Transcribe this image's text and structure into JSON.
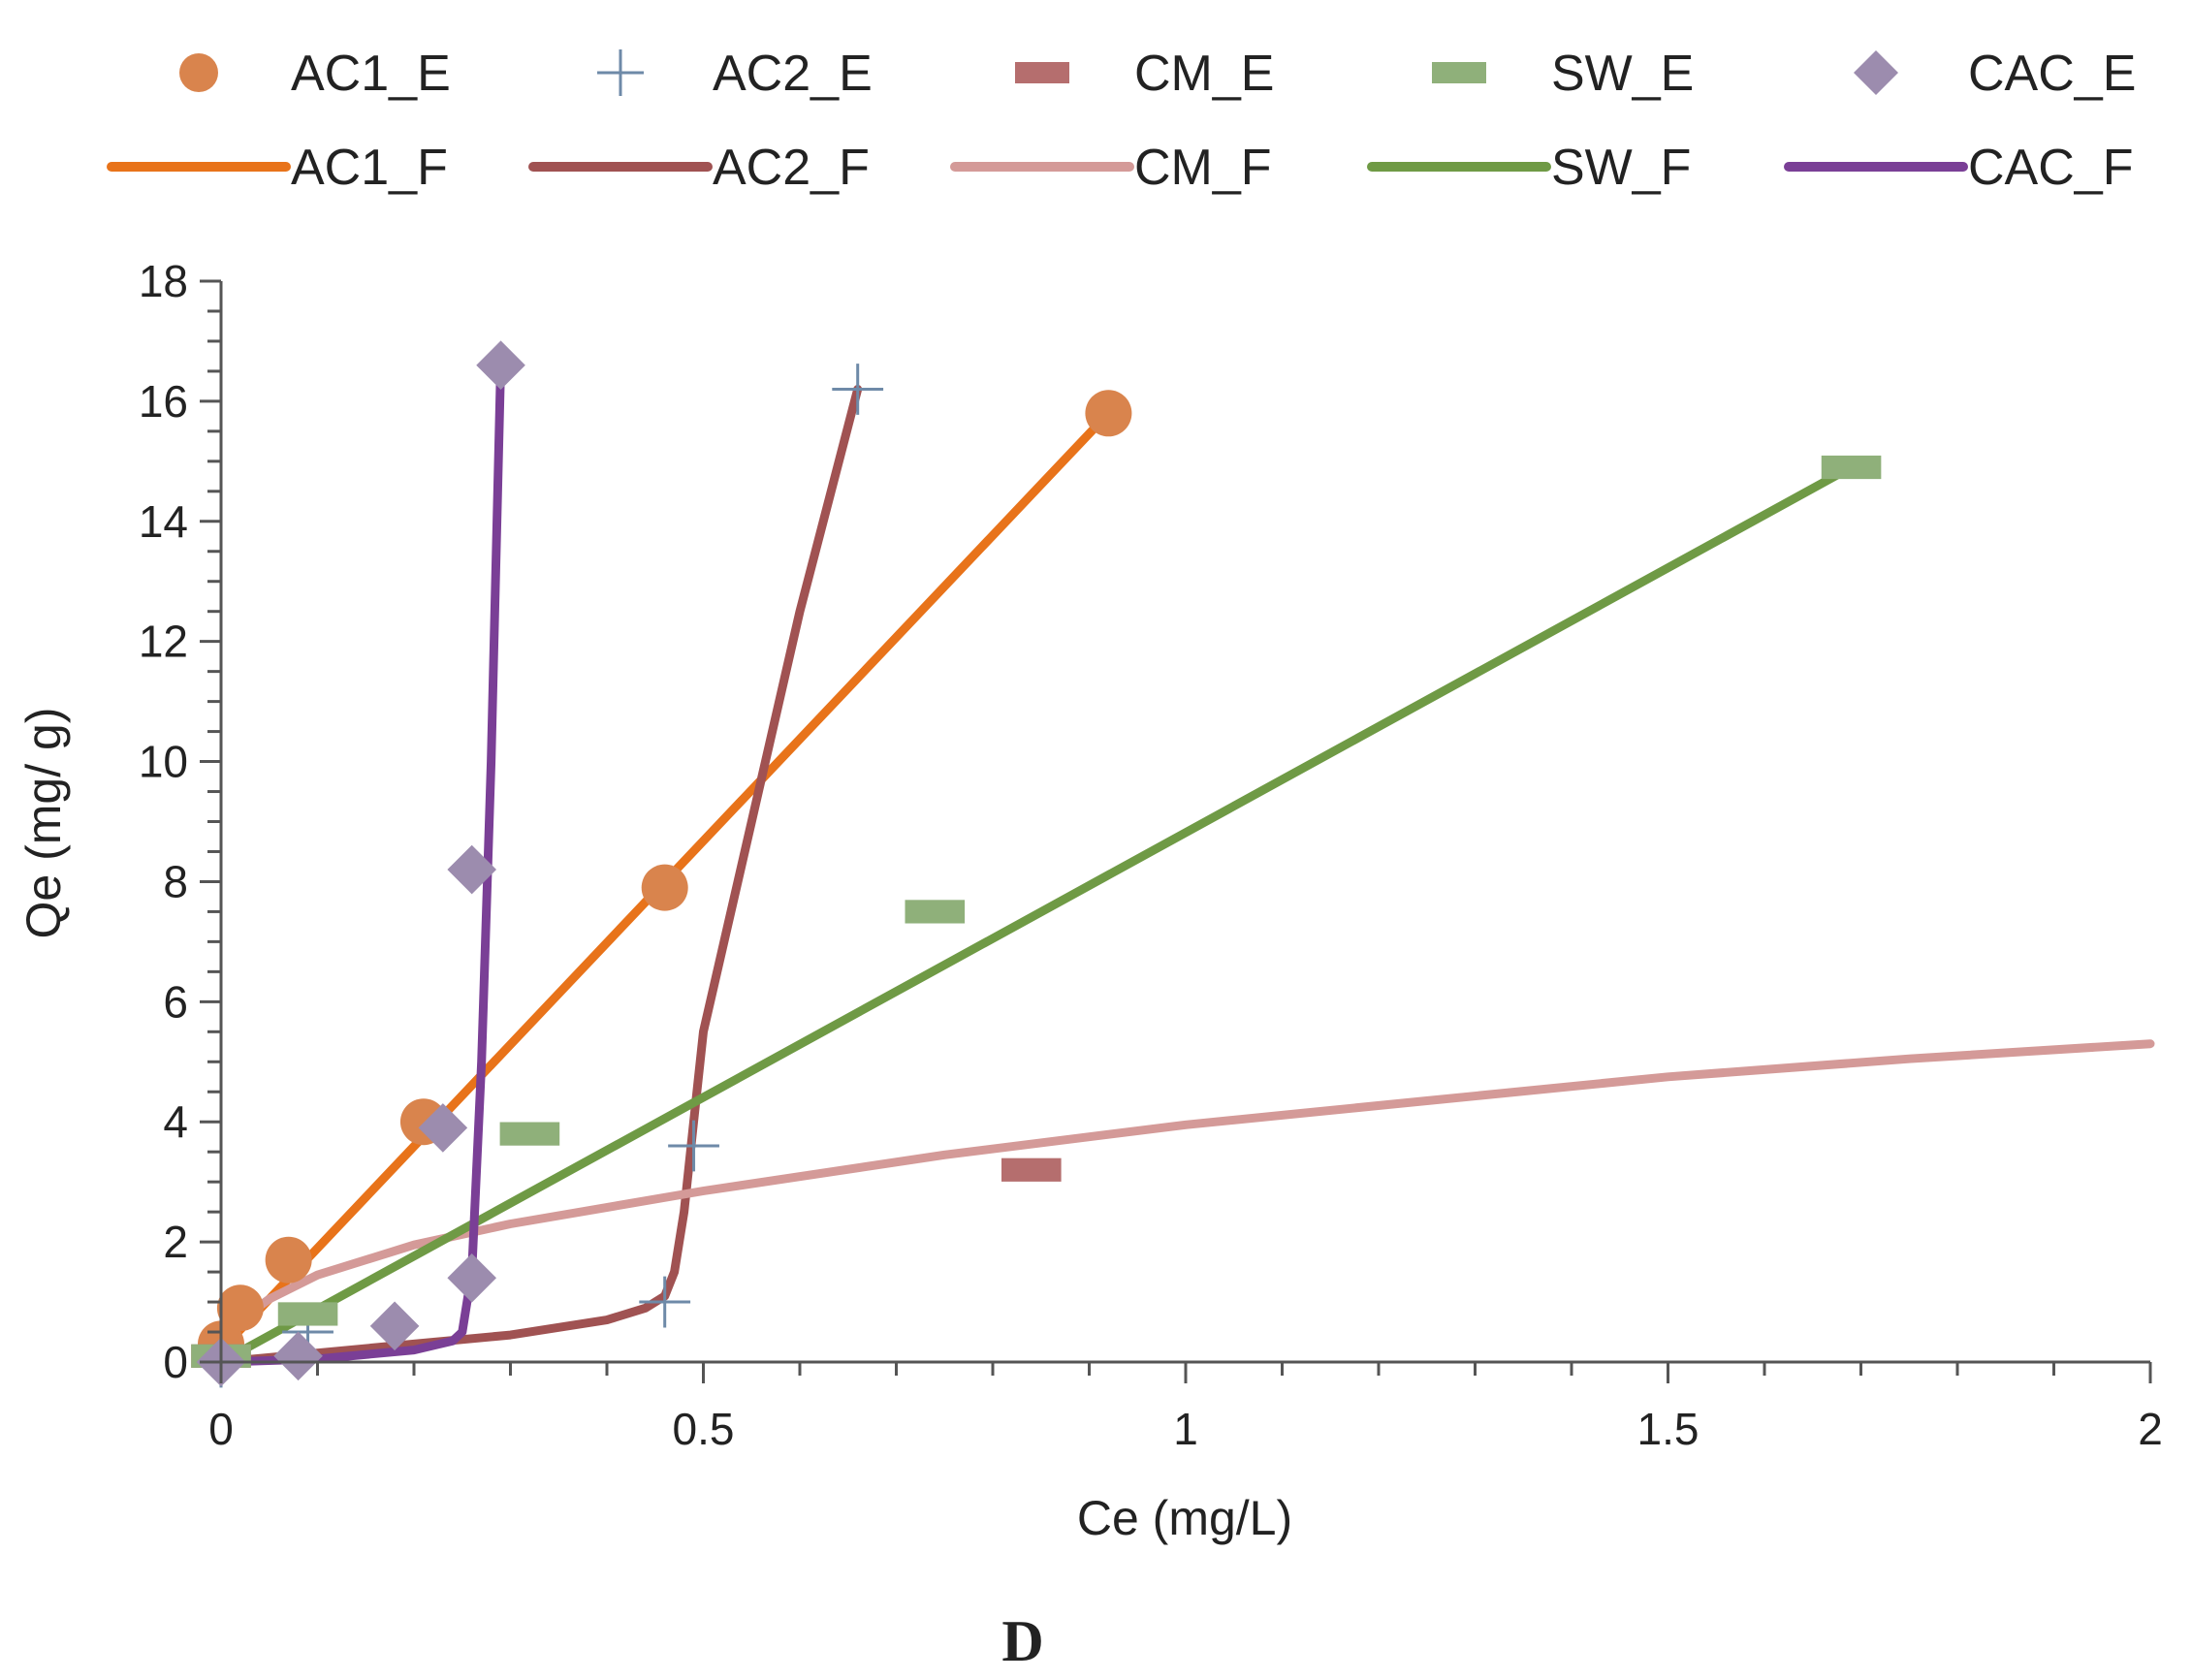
{
  "chart_data": {
    "type": "scatter",
    "panel_label": "D",
    "xlabel": "Ce (mg/L)",
    "ylabel": "Qe (mg/ g)",
    "xlim": [
      0,
      2
    ],
    "ylim": [
      0,
      18
    ],
    "x_ticks": [
      0,
      0.5,
      1,
      1.5,
      2
    ],
    "x_tick_labels": [
      "0",
      "0.5",
      "1",
      "1.5",
      "2"
    ],
    "y_ticks": [
      0,
      2,
      4,
      6,
      8,
      10,
      12,
      14,
      16,
      18
    ],
    "y_tick_labels": [
      "0",
      "2",
      "4",
      "6",
      "8",
      "10",
      "12",
      "14",
      "16",
      "18"
    ],
    "grid": false,
    "legend_position": "top",
    "experimental_series": [
      {
        "name": "AC1_E",
        "marker": "circle",
        "color": "#D9844D",
        "x": [
          0.0,
          0.02,
          0.07,
          0.21,
          0.46,
          0.92
        ],
        "y": [
          0.3,
          0.9,
          1.7,
          4.0,
          7.9,
          15.8
        ]
      },
      {
        "name": "AC2_E",
        "marker": "plus",
        "color": "#6E8AA8",
        "x": [
          0.0,
          0.09,
          0.46,
          0.49,
          0.66
        ],
        "y": [
          0.0,
          0.5,
          1.0,
          3.6,
          16.2
        ]
      },
      {
        "name": "CM_E",
        "marker": "dash",
        "color": "#B56E6E",
        "x": [
          0.0,
          0.84
        ],
        "y": [
          0.1,
          3.2
        ]
      },
      {
        "name": "SW_E",
        "marker": "dash",
        "color": "#8FB07A",
        "x": [
          0.0,
          0.09,
          0.32,
          0.74,
          1.69
        ],
        "y": [
          0.1,
          0.8,
          3.8,
          7.5,
          14.9
        ]
      },
      {
        "name": "CAC_E",
        "marker": "diamond",
        "color": "#9C8CAE",
        "x": [
          0.0,
          0.08,
          0.18,
          0.23,
          0.26,
          0.26,
          0.29
        ],
        "y": [
          0.0,
          0.1,
          0.6,
          3.9,
          1.4,
          8.2,
          16.6
        ]
      }
    ],
    "fitted_series": [
      {
        "name": "AC1_F",
        "color": "#E8731A",
        "x": [
          0.0,
          0.92
        ],
        "y": [
          0.2,
          15.8
        ]
      },
      {
        "name": "AC2_F",
        "color": "#A05252",
        "x": [
          0.0,
          0.1,
          0.2,
          0.3,
          0.4,
          0.44,
          0.46,
          0.47,
          0.48,
          0.49,
          0.5,
          0.55,
          0.6,
          0.66
        ],
        "y": [
          0.0,
          0.15,
          0.3,
          0.45,
          0.7,
          0.9,
          1.1,
          1.5,
          2.5,
          4.0,
          5.5,
          9.0,
          12.5,
          16.2
        ]
      },
      {
        "name": "CM_F",
        "color": "#D49A98",
        "x": [
          0.0,
          0.02,
          0.05,
          0.1,
          0.2,
          0.3,
          0.5,
          0.75,
          1.0,
          1.25,
          1.5,
          1.75,
          2.0
        ],
        "y": [
          0.3,
          0.7,
          1.05,
          1.45,
          1.95,
          2.3,
          2.85,
          3.45,
          3.95,
          4.35,
          4.75,
          5.05,
          5.3
        ]
      },
      {
        "name": "SW_F",
        "color": "#6F9A45",
        "x": [
          0.0,
          1.69
        ],
        "y": [
          0.0,
          14.9
        ]
      },
      {
        "name": "CAC_F",
        "color": "#7A3F96",
        "x": [
          0.0,
          0.1,
          0.2,
          0.24,
          0.25,
          0.26,
          0.27,
          0.28,
          0.29
        ],
        "y": [
          0.0,
          0.05,
          0.2,
          0.35,
          0.5,
          1.5,
          5.0,
          10.0,
          16.6
        ]
      }
    ],
    "legend_rows": [
      [
        "AC1_E",
        "AC2_E",
        "CM_E",
        "SW_E",
        "CAC_E"
      ],
      [
        "AC1_F",
        "AC2_F",
        "CM_F",
        "SW_F",
        "CAC_F"
      ]
    ]
  }
}
